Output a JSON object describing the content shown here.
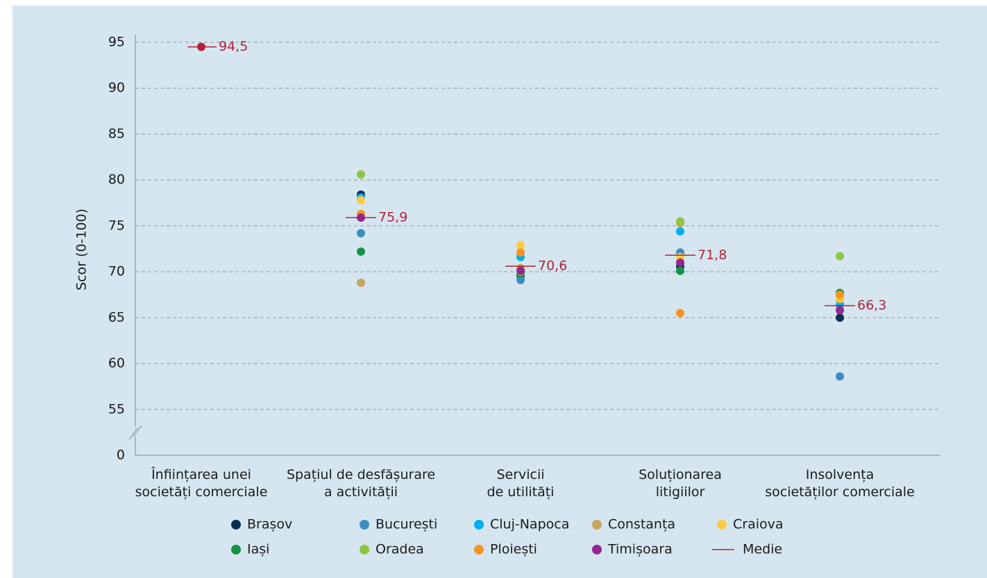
{
  "chart_data": {
    "type": "dot",
    "y_label": "Scor (0-100)",
    "categories": [
      [
        "Înființarea unei",
        "societăți comerciale"
      ],
      [
        "Spațiul de desfășurare",
        "a activității"
      ],
      [
        "Servicii",
        "de utilități"
      ],
      [
        "Soluționarea",
        "litigiilor"
      ],
      [
        "Insolvența",
        "societăților comerciale"
      ]
    ],
    "ylim": [
      0,
      95
    ],
    "axis_break": [
      0,
      50
    ],
    "yticks": [
      0,
      55,
      60,
      65,
      70,
      75,
      80,
      85,
      90,
      95
    ],
    "grid": true,
    "legend": "bottom",
    "series": [
      {
        "name": "Brașov",
        "color": "#0b2f52",
        "values": [
          null,
          78.4,
          69.6,
          70.6,
          65.0
        ]
      },
      {
        "name": "București",
        "color": "#3b8ec0",
        "values": [
          null,
          74.2,
          69.1,
          72.1,
          58.6
        ]
      },
      {
        "name": "Cluj-Napoca",
        "color": "#00aeef",
        "values": [
          null,
          78.1,
          71.6,
          74.4,
          66.4
        ]
      },
      {
        "name": "Constanța",
        "color": "#c9a45c",
        "values": [
          null,
          68.8,
          70.4,
          75.3,
          67.0
        ]
      },
      {
        "name": "Craiova",
        "color": "#fdcb3f",
        "values": [
          null,
          77.8,
          72.9,
          71.6,
          67.1
        ]
      },
      {
        "name": "Iași",
        "color": "#139447",
        "values": [
          null,
          72.2,
          69.8,
          70.1,
          67.7
        ]
      },
      {
        "name": "Oradea",
        "color": "#8dc63f",
        "values": [
          null,
          80.6,
          70.0,
          75.5,
          71.7
        ]
      },
      {
        "name": "Ploiești",
        "color": "#f7941d",
        "values": [
          null,
          76.3,
          72.1,
          65.5,
          67.5
        ]
      },
      {
        "name": "Timișoara",
        "color": "#92278f",
        "values": [
          null,
          75.9,
          70.1,
          71.0,
          65.8
        ]
      }
    ],
    "mean": {
      "name": "Medie",
      "color": "#b22234",
      "values": [
        94.5,
        75.9,
        70.6,
        71.8,
        66.3
      ],
      "value_labels": [
        "94,5",
        "75,9",
        "70,6",
        "71,8",
        "66,3"
      ]
    }
  }
}
